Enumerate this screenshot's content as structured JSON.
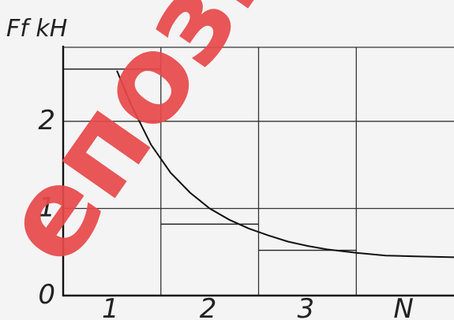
{
  "watermark": {
    "text": "епозит",
    "color": "#e8494a"
  },
  "chart_data": {
    "type": "line",
    "title": "",
    "ylabel": "Ff kH",
    "xlabel": "",
    "categories": [
      "1",
      "2",
      "3",
      "N"
    ],
    "y_ticks": [
      "0",
      "1",
      "2"
    ],
    "ylim": [
      0,
      2.85
    ],
    "grid": true,
    "series": [
      {
        "x": [
          0.55,
          0.7,
          0.9,
          1.1,
          1.3,
          1.5,
          1.7,
          1.9,
          2.1,
          2.3,
          2.5,
          2.7,
          3.0,
          3.3,
          3.6,
          4.0
        ],
        "values": [
          2.58,
          2.18,
          1.73,
          1.41,
          1.18,
          1.0,
          0.87,
          0.77,
          0.69,
          0.62,
          0.57,
          0.53,
          0.49,
          0.46,
          0.45,
          0.44
        ]
      }
    ],
    "level_lines": [
      {
        "x_range": [
          0,
          1
        ],
        "value": 2.6
      },
      {
        "x_range": [
          1,
          2
        ],
        "value": 0.82
      },
      {
        "x_range": [
          2,
          3
        ],
        "value": 0.52
      }
    ]
  }
}
